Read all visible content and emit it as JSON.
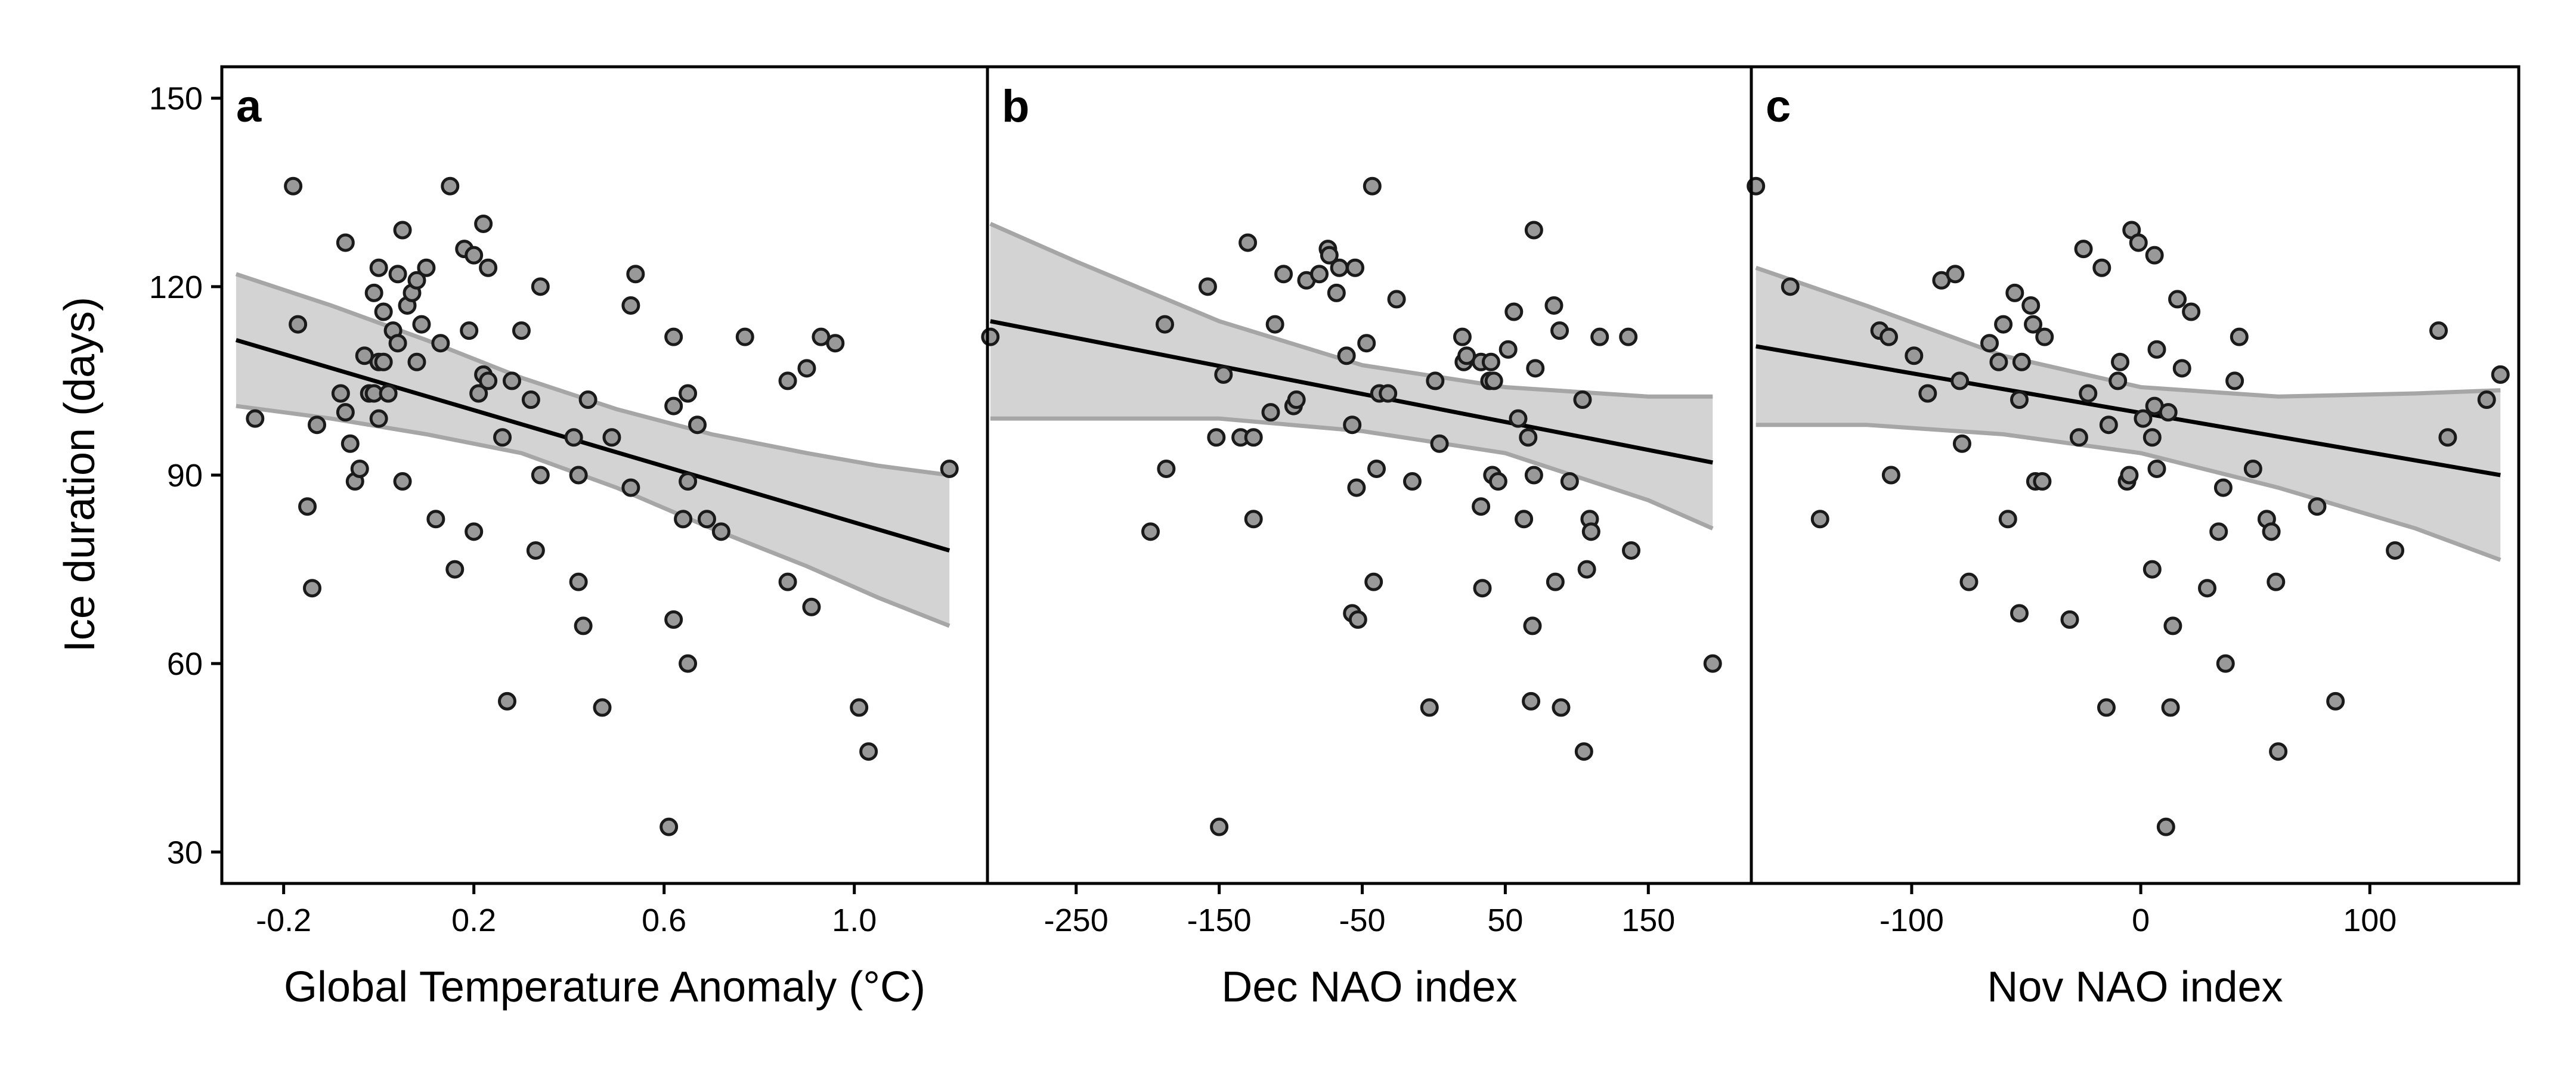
{
  "colors": {
    "point_fill": "#999999",
    "point_stroke": "#1a1a1a",
    "band_fill": "#d3d3d3",
    "band_stroke": "#a6a6a6",
    "fit_line": "#000000",
    "frame": "#000000"
  },
  "figure": {
    "ylabel": "Ice duration (days)"
  },
  "chart_data": [
    {
      "type": "scatter",
      "panel_label": "a",
      "xlabel": "Global Temperature Anomaly (°C)",
      "ylabel": "Ice duration (days)",
      "xlim": [
        -0.33,
        1.28
      ],
      "ylim": [
        25,
        155
      ],
      "xticks": [
        -0.2,
        0.2,
        0.6,
        1.0
      ],
      "xtick_labels": [
        "-0.2",
        "0.2",
        "0.6",
        "1.0"
      ],
      "yticks": [
        30,
        60,
        90,
        120,
        150
      ],
      "ytick_labels": [
        "30",
        "60",
        "90",
        "120",
        "150"
      ],
      "grid": false,
      "points": [
        [
          -0.26,
          99
        ],
        [
          -0.18,
          136
        ],
        [
          -0.17,
          114
        ],
        [
          -0.15,
          85
        ],
        [
          -0.14,
          72
        ],
        [
          -0.13,
          98
        ],
        [
          -0.08,
          103
        ],
        [
          -0.07,
          127
        ],
        [
          -0.07,
          100
        ],
        [
          -0.06,
          95
        ],
        [
          -0.05,
          89
        ],
        [
          -0.04,
          91
        ],
        [
          -0.03,
          109
        ],
        [
          -0.02,
          103
        ],
        [
          -0.01,
          119
        ],
        [
          -0.01,
          103
        ],
        [
          0.0,
          99
        ],
        [
          0.0,
          108
        ],
        [
          0.0,
          123
        ],
        [
          0.01,
          116
        ],
        [
          0.01,
          108
        ],
        [
          0.02,
          103
        ],
        [
          0.03,
          113
        ],
        [
          0.04,
          111
        ],
        [
          0.04,
          122
        ],
        [
          0.05,
          89
        ],
        [
          0.05,
          129
        ],
        [
          0.06,
          117
        ],
        [
          0.07,
          119
        ],
        [
          0.08,
          108
        ],
        [
          0.08,
          121
        ],
        [
          0.09,
          114
        ],
        [
          0.1,
          123
        ],
        [
          0.12,
          83
        ],
        [
          0.13,
          111
        ],
        [
          0.15,
          136
        ],
        [
          0.16,
          75
        ],
        [
          0.18,
          126
        ],
        [
          0.19,
          113
        ],
        [
          0.2,
          81
        ],
        [
          0.2,
          125
        ],
        [
          0.21,
          103
        ],
        [
          0.22,
          130
        ],
        [
          0.22,
          106
        ],
        [
          0.23,
          123
        ],
        [
          0.23,
          105
        ],
        [
          0.26,
          96
        ],
        [
          0.27,
          54
        ],
        [
          0.28,
          105
        ],
        [
          0.3,
          113
        ],
        [
          0.32,
          102
        ],
        [
          0.33,
          78
        ],
        [
          0.34,
          90
        ],
        [
          0.34,
          120
        ],
        [
          0.41,
          96
        ],
        [
          0.42,
          73
        ],
        [
          0.42,
          90
        ],
        [
          0.43,
          66
        ],
        [
          0.44,
          102
        ],
        [
          0.47,
          53
        ],
        [
          0.49,
          96
        ],
        [
          0.53,
          88
        ],
        [
          0.53,
          117
        ],
        [
          0.54,
          122
        ],
        [
          0.61,
          34
        ],
        [
          0.62,
          67
        ],
        [
          0.62,
          101
        ],
        [
          0.62,
          112
        ],
        [
          0.64,
          83
        ],
        [
          0.65,
          60
        ],
        [
          0.65,
          103
        ],
        [
          0.65,
          89
        ],
        [
          0.67,
          98
        ],
        [
          0.69,
          83
        ],
        [
          0.72,
          81
        ],
        [
          0.77,
          112
        ],
        [
          0.86,
          105
        ],
        [
          0.86,
          73
        ],
        [
          0.9,
          107
        ],
        [
          0.91,
          69
        ],
        [
          0.93,
          112
        ],
        [
          0.96,
          111
        ],
        [
          1.01,
          53
        ],
        [
          1.03,
          46
        ],
        [
          1.2,
          91
        ]
      ],
      "fit": {
        "x": [
          -0.3,
          1.2
        ],
        "y": [
          111.5,
          78.0
        ]
      },
      "ci_band": {
        "x": [
          -0.3,
          -0.1,
          0.1,
          0.3,
          0.5,
          0.7,
          0.9,
          1.05,
          1.2
        ],
        "lower": [
          101.0,
          99.0,
          96.5,
          93.5,
          88.0,
          81.5,
          75.5,
          70.5,
          66.0
        ],
        "upper": [
          122.0,
          117.0,
          111.5,
          105.5,
          100.5,
          96.5,
          93.5,
          91.5,
          90.0
        ]
      }
    },
    {
      "type": "scatter",
      "panel_label": "b",
      "xlabel": "Dec NAO index",
      "xlim": [
        -312,
        222
      ],
      "ylim": [
        25,
        155
      ],
      "xticks": [
        -250,
        -150,
        -50,
        50,
        150
      ],
      "xtick_labels": [
        "-250",
        "-150",
        "-50",
        "50",
        "150"
      ],
      "yticks": [
        30,
        60,
        90,
        120,
        150
      ],
      "grid": false,
      "points": [
        [
          -310,
          112
        ],
        [
          -198,
          81
        ],
        [
          -188,
          114
        ],
        [
          -187,
          91
        ],
        [
          -158,
          120
        ],
        [
          -152,
          96
        ],
        [
          -150,
          34
        ],
        [
          -147,
          106
        ],
        [
          -135,
          96
        ],
        [
          -130,
          127
        ],
        [
          -126,
          83
        ],
        [
          -126,
          96
        ],
        [
          -114,
          100
        ],
        [
          -111,
          114
        ],
        [
          -105,
          122
        ],
        [
          -98,
          101
        ],
        [
          -96,
          102
        ],
        [
          -89,
          121
        ],
        [
          -80,
          122
        ],
        [
          -74,
          126
        ],
        [
          -73,
          125
        ],
        [
          -68,
          119
        ],
        [
          -66,
          123
        ],
        [
          -61,
          109
        ],
        [
          -57,
          68
        ],
        [
          -57,
          98
        ],
        [
          -55,
          123
        ],
        [
          -54,
          88
        ],
        [
          -53,
          67
        ],
        [
          -47,
          111
        ],
        [
          -43,
          136
        ],
        [
          -42,
          73
        ],
        [
          -40,
          91
        ],
        [
          -38,
          103
        ],
        [
          -32,
          103
        ],
        [
          -26,
          118
        ],
        [
          -15,
          89
        ],
        [
          -3,
          53
        ],
        [
          1,
          105
        ],
        [
          4,
          95
        ],
        [
          20,
          112
        ],
        [
          21,
          108
        ],
        [
          23,
          109
        ],
        [
          33,
          85
        ],
        [
          33,
          108
        ],
        [
          34,
          72
        ],
        [
          39,
          105
        ],
        [
          40,
          108
        ],
        [
          41,
          90
        ],
        [
          42,
          105
        ],
        [
          45,
          89
        ],
        [
          52,
          110
        ],
        [
          56,
          116
        ],
        [
          59,
          99
        ],
        [
          63,
          83
        ],
        [
          66,
          96
        ],
        [
          68,
          54
        ],
        [
          69,
          66
        ],
        [
          70,
          129
        ],
        [
          70,
          90
        ],
        [
          71,
          107
        ],
        [
          84,
          117
        ],
        [
          85,
          73
        ],
        [
          88,
          113
        ],
        [
          89,
          53
        ],
        [
          95,
          89
        ],
        [
          104,
          102
        ],
        [
          105,
          46
        ],
        [
          107,
          75
        ],
        [
          109,
          83
        ],
        [
          110,
          81
        ],
        [
          116,
          112
        ],
        [
          136,
          112
        ],
        [
          138,
          78
        ],
        [
          195,
          60
        ]
      ],
      "fit": {
        "x": [
          -310,
          195
        ],
        "y": [
          114.5,
          92.0
        ]
      },
      "ci_band": {
        "x": [
          -310,
          -250,
          -150,
          -50,
          50,
          150,
          195
        ],
        "lower": [
          99.0,
          99.0,
          99.0,
          97.0,
          93.5,
          86.0,
          81.5
        ],
        "upper": [
          130.0,
          124.0,
          114.5,
          107.5,
          104.0,
          102.5,
          102.5
        ]
      }
    },
    {
      "type": "scatter",
      "panel_label": "c",
      "xlabel": "Nov NAO index",
      "xlim": [
        -170,
        165
      ],
      "ylim": [
        25,
        155
      ],
      "xticks": [
        -100,
        0,
        100
      ],
      "xtick_labels": [
        "-100",
        "0",
        "100"
      ],
      "yticks": [
        30,
        60,
        90,
        120,
        150
      ],
      "grid": false,
      "points": [
        [
          -168,
          136
        ],
        [
          -153,
          120
        ],
        [
          -140,
          83
        ],
        [
          -114,
          113
        ],
        [
          -110,
          112
        ],
        [
          -109,
          90
        ],
        [
          -99,
          109
        ],
        [
          -93,
          103
        ],
        [
          -87,
          121
        ],
        [
          -81,
          122
        ],
        [
          -79,
          105
        ],
        [
          -78,
          95
        ],
        [
          -75,
          73
        ],
        [
          -66,
          111
        ],
        [
          -62,
          108
        ],
        [
          -60,
          114
        ],
        [
          -58,
          83
        ],
        [
          -55,
          119
        ],
        [
          -53,
          68
        ],
        [
          -53,
          102
        ],
        [
          -52,
          108
        ],
        [
          -48,
          117
        ],
        [
          -47,
          114
        ],
        [
          -46,
          89
        ],
        [
          -43,
          89
        ],
        [
          -42,
          112
        ],
        [
          -31,
          67
        ],
        [
          -27,
          96
        ],
        [
          -25,
          126
        ],
        [
          -23,
          103
        ],
        [
          -17,
          123
        ],
        [
          -15,
          53
        ],
        [
          -14,
          98
        ],
        [
          -10,
          105
        ],
        [
          -9,
          108
        ],
        [
          -6,
          89
        ],
        [
          -5,
          90
        ],
        [
          -4,
          129
        ],
        [
          -1,
          127
        ],
        [
          1,
          99
        ],
        [
          5,
          96
        ],
        [
          5,
          75
        ],
        [
          6,
          125
        ],
        [
          6,
          101
        ],
        [
          7,
          91
        ],
        [
          7,
          110
        ],
        [
          11,
          34
        ],
        [
          12,
          100
        ],
        [
          13,
          53
        ],
        [
          14,
          66
        ],
        [
          16,
          118
        ],
        [
          18,
          107
        ],
        [
          22,
          116
        ],
        [
          29,
          72
        ],
        [
          34,
          81
        ],
        [
          36,
          88
        ],
        [
          37,
          60
        ],
        [
          41,
          105
        ],
        [
          43,
          112
        ],
        [
          49,
          91
        ],
        [
          55,
          83
        ],
        [
          57,
          81
        ],
        [
          59,
          73
        ],
        [
          60,
          46
        ],
        [
          77,
          85
        ],
        [
          85,
          54
        ],
        [
          111,
          78
        ],
        [
          130,
          113
        ],
        [
          134,
          96
        ],
        [
          151,
          102
        ],
        [
          157,
          106
        ]
      ],
      "fit": {
        "x": [
          -168,
          157
        ],
        "y": [
          110.5,
          90.0
        ]
      },
      "ci_band": {
        "x": [
          -168,
          -120,
          -60,
          0,
          60,
          120,
          157
        ],
        "lower": [
          98.0,
          98.0,
          96.5,
          93.5,
          88.0,
          81.5,
          76.5
        ],
        "upper": [
          123.0,
          117.0,
          109.0,
          104.0,
          102.5,
          103.0,
          103.5
        ]
      }
    }
  ]
}
